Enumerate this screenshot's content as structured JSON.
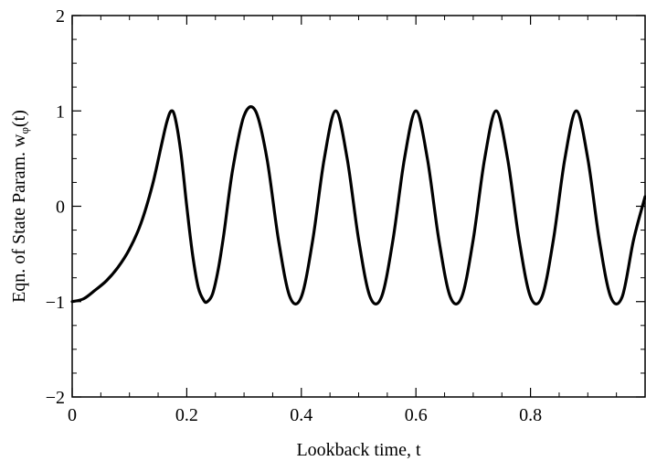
{
  "chart_data": {
    "type": "line",
    "xlabel": "Lookback time, t",
    "ylabel_main": "Eqn. of State Param.  w",
    "ylabel_sub": "φ",
    "ylabel_tail": "(t)",
    "xlim": [
      0,
      1
    ],
    "ylim": [
      -2,
      2
    ],
    "xticks": [
      0,
      0.2,
      0.4,
      0.6,
      0.8
    ],
    "xtick_labels": [
      "0",
      "0.2",
      "0.4",
      "0.6",
      "0.8"
    ],
    "yticks": [
      -2,
      -1,
      0,
      1,
      2
    ],
    "ytick_labels": [
      "−2",
      "−1",
      "0",
      "1",
      "2"
    ],
    "grid": false,
    "line_color": "#000000",
    "series": [
      {
        "x": [
          0,
          0.02,
          0.04,
          0.06,
          0.08,
          0.1,
          0.12,
          0.14,
          0.155,
          0.165,
          0.173,
          0.18,
          0.19,
          0.2,
          0.21,
          0.22,
          0.23,
          0.236,
          0.245,
          0.255,
          0.265,
          0.28,
          0.3,
          0.32,
          0.34,
          0.36,
          0.38,
          0.4,
          0.42,
          0.44,
          0.46,
          0.48,
          0.5,
          0.52,
          0.54,
          0.56,
          0.58,
          0.6,
          0.62,
          0.64,
          0.66,
          0.68,
          0.7,
          0.72,
          0.74,
          0.76,
          0.78,
          0.8,
          0.82,
          0.84,
          0.86,
          0.88,
          0.9,
          0.92,
          0.94,
          0.96,
          0.98,
          1.0
        ],
        "y": [
          -1.0,
          -0.97,
          -0.88,
          -0.78,
          -0.64,
          -0.45,
          -0.18,
          0.22,
          0.62,
          0.88,
          1.0,
          0.92,
          0.55,
          0.0,
          -0.5,
          -0.85,
          -0.99,
          -1.0,
          -0.92,
          -0.66,
          -0.28,
          0.38,
          0.95,
          1.0,
          0.5,
          -0.35,
          -0.95,
          -0.95,
          -0.35,
          0.5,
          1.0,
          0.5,
          -0.35,
          -0.95,
          -0.95,
          -0.35,
          0.5,
          1.0,
          0.5,
          -0.35,
          -0.95,
          -0.95,
          -0.35,
          0.5,
          1.0,
          0.5,
          -0.35,
          -0.95,
          -0.95,
          -0.35,
          0.5,
          1.0,
          0.5,
          -0.35,
          -0.95,
          -0.95,
          -0.35,
          0.1
        ]
      }
    ]
  }
}
